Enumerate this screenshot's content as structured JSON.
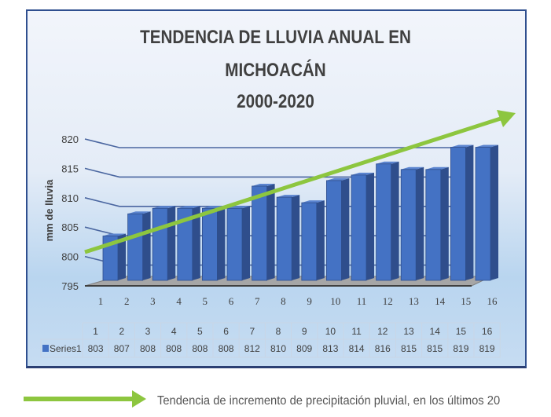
{
  "chart_data": {
    "type": "bar",
    "title": [
      "TENDENCIA DE LLUVIA ANUAL EN",
      "MICHOACÁN",
      "2000-2020"
    ],
    "ylabel": "mm de lluvia",
    "xlabel": "",
    "ylim": [
      795,
      820
    ],
    "yticks": [
      795,
      800,
      805,
      810,
      815,
      820
    ],
    "grid": true,
    "style": "3d-column",
    "categories": [
      "1",
      "2",
      "3",
      "4",
      "5",
      "6",
      "7",
      "8",
      "9",
      "10",
      "11",
      "12",
      "13",
      "14",
      "15",
      "16"
    ],
    "series": [
      {
        "name": "Series1",
        "values": [
          803,
          807,
          808,
          808,
          808,
          808,
          812,
          810,
          809,
          813,
          814,
          816,
          815,
          815,
          819,
          819
        ]
      }
    ],
    "data_table": true,
    "annotation": {
      "type": "trend-arrow",
      "label": "Tendencia de incremento de precipitación pluvial, en los últimos 20"
    }
  },
  "colors": {
    "bar": "#4472c4",
    "trend": "#8dc63f",
    "frame": "#2f4f8f"
  }
}
